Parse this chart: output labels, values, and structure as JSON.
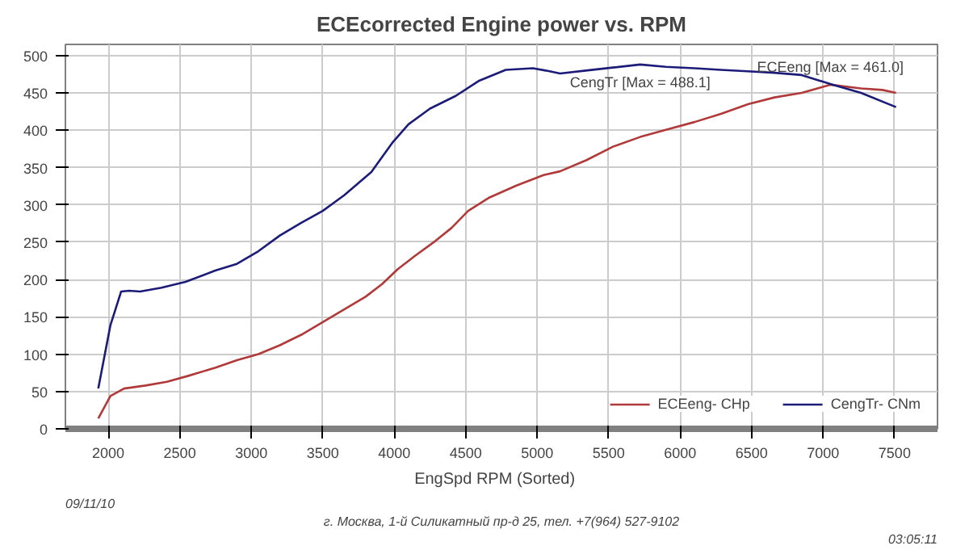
{
  "chart_data": {
    "type": "line",
    "title": "ECEcorrected Engine power vs. RPM",
    "xlabel": "EngSpd  RPM   (Sorted)",
    "series": [
      {
        "name": "ECEeng- CHp",
        "color": "#b03a3a",
        "x": [
          1930,
          2015,
          2110,
          2260,
          2410,
          2560,
          2750,
          2900,
          3050,
          3200,
          3350,
          3500,
          3650,
          3800,
          3915,
          4025,
          4140,
          4290,
          4400,
          4517,
          4667,
          4855,
          5045,
          5160,
          5345,
          5530,
          5720,
          5910,
          6100,
          6285,
          6475,
          6660,
          6850,
          7050,
          7265,
          7415,
          7510
        ],
        "values": [
          14,
          44,
          54,
          58,
          63,
          71,
          82,
          92,
          100,
          112,
          126,
          143,
          160,
          177,
          194,
          214,
          231,
          252,
          269,
          292,
          310,
          326,
          340,
          345,
          360,
          378,
          391,
          401,
          411,
          422,
          435,
          444,
          450,
          461,
          456,
          454,
          450
        ]
      },
      {
        "name": "CengTr- CNm",
        "color": "#1c1c78",
        "x": [
          1930,
          2015,
          2090,
          2147,
          2222,
          2372,
          2540,
          2748,
          2900,
          3050,
          3200,
          3350,
          3500,
          3650,
          3840,
          3990,
          4100,
          4250,
          4430,
          4590,
          4780,
          4970,
          5060,
          5160,
          5340,
          5530,
          5720,
          5900,
          6100,
          6285,
          6470,
          6660,
          6850,
          7050,
          7265,
          7510
        ],
        "values": [
          54,
          139,
          184,
          185,
          184,
          189,
          197,
          212,
          221,
          238,
          259,
          276,
          292,
          313,
          344,
          384,
          408,
          429,
          446,
          466,
          481,
          483,
          480,
          476,
          480,
          484,
          488.1,
          485,
          483,
          481,
          479,
          477,
          474,
          462,
          450,
          431
        ]
      }
    ],
    "xlim": [
      1700,
      7800
    ],
    "ylim": [
      0,
      515
    ],
    "xticks": [
      2000,
      2500,
      3000,
      3500,
      4000,
      4500,
      5000,
      5500,
      6000,
      6500,
      7000,
      7500
    ],
    "yticks": [
      0,
      50,
      100,
      150,
      200,
      250,
      300,
      350,
      400,
      450,
      500
    ],
    "grid": true,
    "legend": "bottom right",
    "marker": "none",
    "line_style": "solid",
    "annotations": [
      {
        "text": "CengTr [Max = 488.1]",
        "x": 5720,
        "y": 488.1
      },
      {
        "text": "ECEeng [Max = 461.0]",
        "x": 7050,
        "y": 461
      },
      "09/11/10",
      "г. Москва, 1-й Силикатный пр-д 25, тел. +7(964) 527-9102",
      "03:05:11"
    ]
  }
}
